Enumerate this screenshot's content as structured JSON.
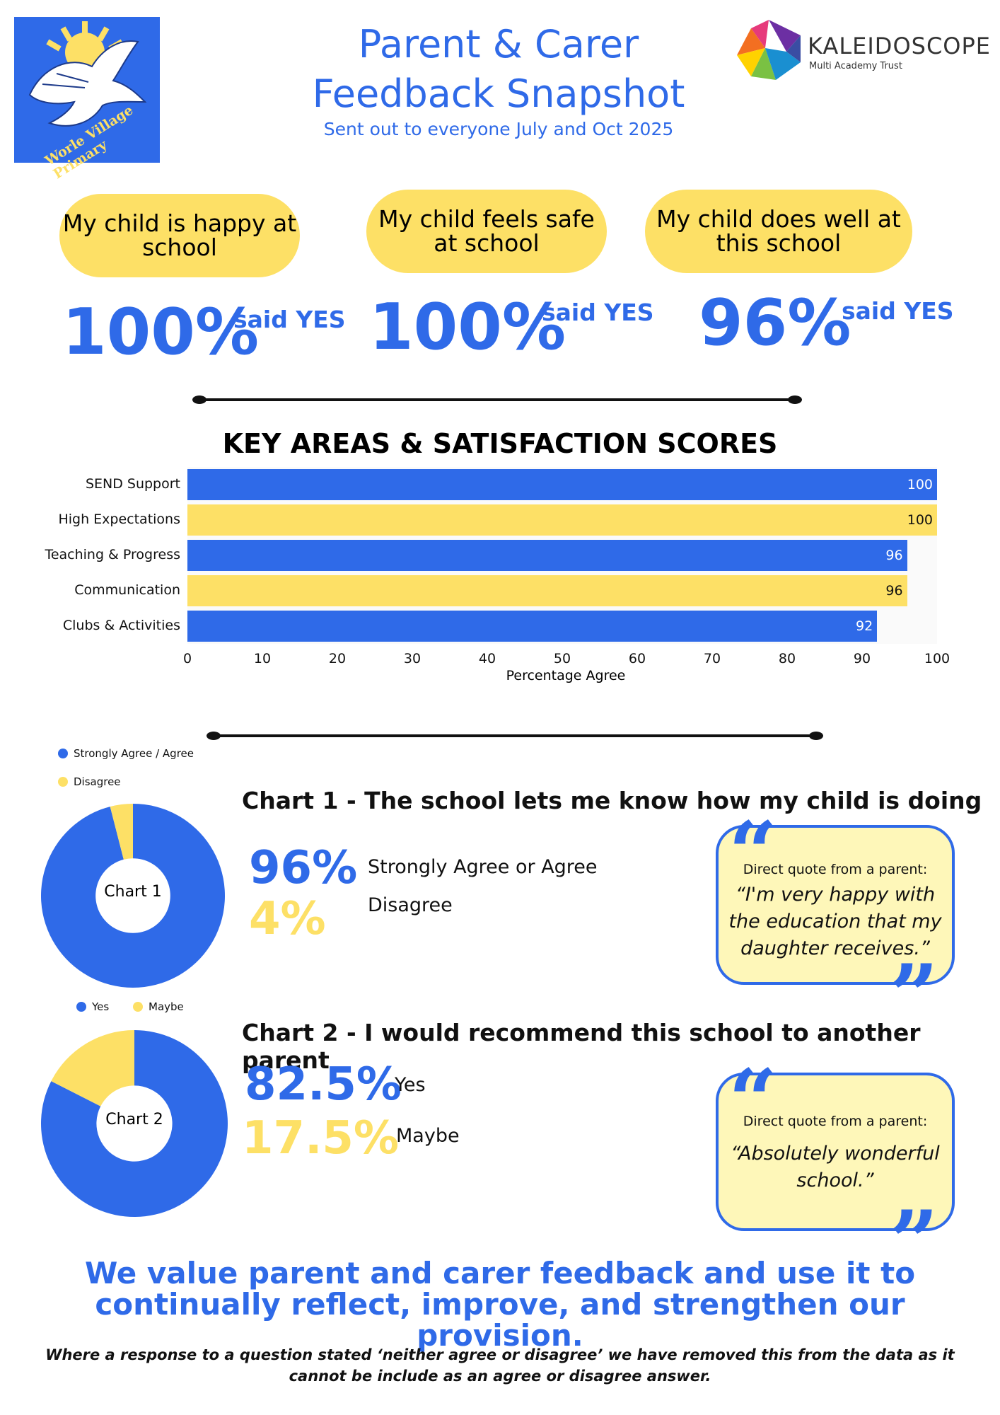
{
  "header": {
    "school_logo_text": "Worle Village Primary",
    "title_line1": "Parent & Carer",
    "title_line2": "Feedback Snapshot",
    "subtitle": "Sent out to everyone July and Oct 2025",
    "trust_name": "KALEIDOSCOPE",
    "trust_sub": "Multi Academy Trust"
  },
  "yes_cards": [
    {
      "label": "My child is happy at school",
      "percent": "100%",
      "suffix": "said YES"
    },
    {
      "label": "My child feels safe at school",
      "percent": "100%",
      "suffix": "said YES"
    },
    {
      "label": "My child does well at this school",
      "percent": "96%",
      "suffix": "said YES"
    }
  ],
  "colors": {
    "blue": "#2f6ae8",
    "yellow": "#fde066"
  },
  "chart_data": [
    {
      "type": "bar",
      "orientation": "horizontal",
      "title": "KEY AREAS & SATISFACTION SCORES",
      "categories": [
        "SEND Support",
        "High Expectations",
        "Teaching & Progress",
        "Communication",
        "Clubs & Activities"
      ],
      "values": [
        100,
        100,
        96,
        96,
        92
      ],
      "value_labels": [
        "100",
        "100",
        "96",
        "96",
        "92"
      ],
      "bar_colors": [
        "#2f6ae8",
        "#fde066",
        "#2f6ae8",
        "#fde066",
        "#2f6ae8"
      ],
      "xlabel": "Percentage Agree",
      "xlim": [
        0,
        100
      ],
      "xticks": [
        "0",
        "10",
        "20",
        "30",
        "40",
        "50",
        "60",
        "70",
        "80",
        "90",
        "100"
      ]
    },
    {
      "type": "pie",
      "donut": true,
      "center_label": "Chart 1",
      "title": "Chart 1 - The school lets me know how my child is doing",
      "legend": [
        "Strongly Agree / Agree",
        "Disagree"
      ],
      "values": [
        96,
        4
      ],
      "colors": [
        "#2f6ae8",
        "#fde066"
      ],
      "stats": [
        {
          "value": "96%",
          "label": "Strongly Agree or Agree"
        },
        {
          "value": "4%",
          "label": "Disagree"
        }
      ]
    },
    {
      "type": "pie",
      "donut": true,
      "center_label": "Chart 2",
      "title": "Chart 2 - I would recommend this school to another parent",
      "legend": [
        "Yes",
        "Maybe"
      ],
      "values": [
        82.5,
        17.5
      ],
      "colors": [
        "#2f6ae8",
        "#fde066"
      ],
      "stats": [
        {
          "value": "82.5%",
          "label": "Yes"
        },
        {
          "value": "17.5%",
          "label": "Maybe"
        }
      ]
    }
  ],
  "quotes": [
    {
      "lead": "Direct quote from a parent:",
      "text": "“I'm very happy with the education that my daughter receives.”"
    },
    {
      "lead": "Direct quote from a parent:",
      "text": "“Absolutely wonderful school.”"
    }
  ],
  "closing": "We value parent and carer feedback and use it to continually reflect, improve, and strengthen our provision.",
  "footnote": "Where a response to a question stated ‘neither agree or disagree’ we have removed this from the data as it cannot be include as an agree or disagree answer."
}
